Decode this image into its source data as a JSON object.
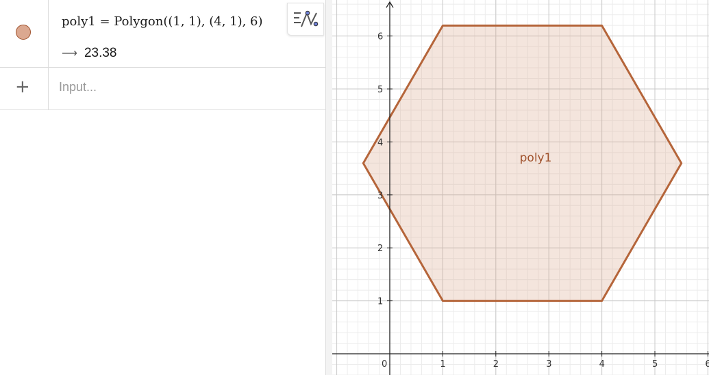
{
  "algebra": {
    "rows": [
      {
        "definition": "poly1 = Polygon((1, 1), (4, 1), 6)",
        "value": "23.38",
        "color": "#dba890",
        "stroke": "#a0522d"
      }
    ],
    "input_placeholder": "Input..."
  },
  "icons": {
    "visibility_toggle": "circle-visibility-icon",
    "add": "plus-icon",
    "graph_style": "algebra-style-icon",
    "arrow": "right-arrow-icon"
  },
  "graphics": {
    "x_range": [
      -0.7,
      6.2
    ],
    "y_range": [
      -0.4,
      6.65
    ],
    "axis_labels_x": [
      "0",
      "1",
      "2",
      "3",
      "4",
      "5",
      "6"
    ],
    "axis_labels_y": [
      "1",
      "2",
      "3",
      "4",
      "5",
      "6"
    ],
    "polygon": {
      "name": "poly1",
      "vertices": [
        [
          1,
          1
        ],
        [
          4,
          1
        ],
        [
          5.5,
          3.598
        ],
        [
          4,
          6.196
        ],
        [
          1,
          6.196
        ],
        [
          -0.5,
          3.598
        ]
      ],
      "fill": "#dba890",
      "stroke": "#b5653a"
    },
    "grid": true
  }
}
